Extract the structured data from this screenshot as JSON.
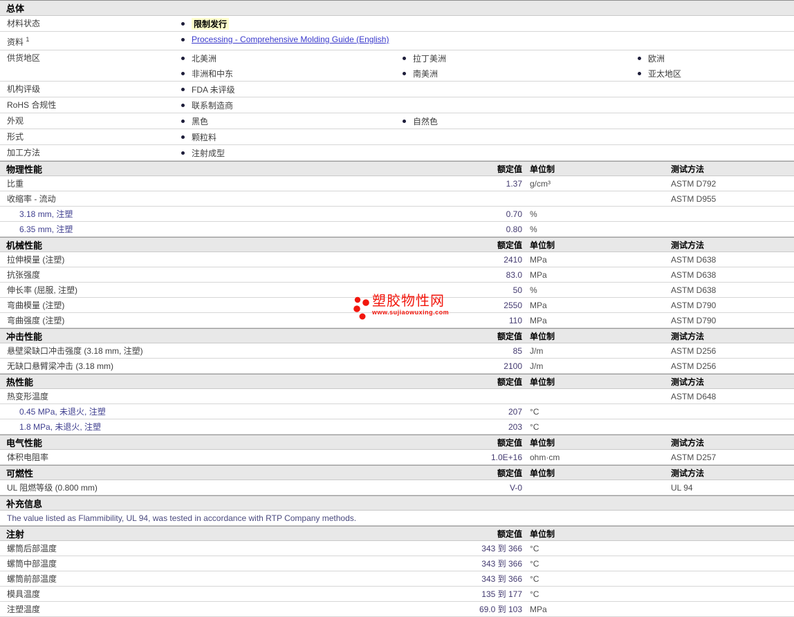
{
  "watermark": {
    "site_name": "塑胶物性网",
    "site_url": "www.sujiaowuxing.com"
  },
  "colors": {
    "accent_red": "#f2160c",
    "link_blue": "#3939cc",
    "highlight_yellow": "#ffffcc",
    "section_bg": "#e8e8e8"
  },
  "table": {
    "col_headers": {
      "value": "额定值",
      "unit": "单位制",
      "method": "测试方法"
    },
    "sections": [
      {
        "title": "总体",
        "kind": "general",
        "cols_header": "none",
        "rows": [
          {
            "label": "材料状态",
            "cols": [
              [
                {
                  "text": "限制发行",
                  "highlight": true
                }
              ],
              [],
              []
            ]
          },
          {
            "label": "资料",
            "sup": "1",
            "cols": [
              [
                {
                  "text": "Processing - Comprehensive Molding Guide (English)",
                  "link": true
                }
              ],
              [],
              []
            ]
          },
          {
            "label": "供货地区",
            "cols": [
              [
                "北美洲",
                "非洲和中东"
              ],
              [
                "拉丁美洲",
                "南美洲"
              ],
              [
                "欧洲",
                "亚太地区"
              ]
            ]
          },
          {
            "label": "机构评级",
            "cols": [
              [
                "FDA 未评级"
              ],
              [],
              []
            ]
          },
          {
            "label": "RoHS 合规性",
            "cols": [
              [
                "联系制造商"
              ],
              [],
              []
            ]
          },
          {
            "label": "外观",
            "cols": [
              [
                "黑色"
              ],
              [
                "自然色"
              ],
              []
            ]
          },
          {
            "label": "形式",
            "cols": [
              [
                "颗粒料"
              ],
              [],
              []
            ]
          },
          {
            "label": "加工方法",
            "cols": [
              [
                "注射成型"
              ],
              [],
              []
            ]
          }
        ]
      },
      {
        "title": "物理性能",
        "kind": "props",
        "cols_header": "full",
        "rows": [
          {
            "name": "比重",
            "value": "1.37",
            "unit": "g/cm³",
            "method": "ASTM D792"
          },
          {
            "name": "收缩率 - 流动",
            "method": "ASTM D955"
          },
          {
            "name": "3.18 mm, 注塑",
            "indent": true,
            "value": "0.70",
            "unit": "%"
          },
          {
            "name": "6.35 mm, 注塑",
            "indent": true,
            "value": "0.80",
            "unit": "%"
          }
        ]
      },
      {
        "title": "机械性能",
        "kind": "props",
        "cols_header": "full",
        "rows": [
          {
            "name": "拉伸模量 (注塑)",
            "value": "2410",
            "unit": "MPa",
            "method": "ASTM D638"
          },
          {
            "name": "抗张强度",
            "value": "83.0",
            "unit": "MPa",
            "method": "ASTM D638"
          },
          {
            "name": "伸长率 (屈服, 注塑)",
            "value": "50",
            "unit": "%",
            "method": "ASTM D638"
          },
          {
            "name": "弯曲模量 (注塑)",
            "value": "2550",
            "unit": "MPa",
            "method": "ASTM D790"
          },
          {
            "name": "弯曲强度 (注塑)",
            "value": "110",
            "unit": "MPa",
            "method": "ASTM D790"
          }
        ]
      },
      {
        "title": "冲击性能",
        "kind": "props",
        "cols_header": "full",
        "rows": [
          {
            "name": "悬壁梁缺口冲击强度 (3.18 mm, 注塑)",
            "value": "85",
            "unit": "J/m",
            "method": "ASTM D256"
          },
          {
            "name": "无缺口悬臂梁冲击 (3.18 mm)",
            "value": "2100",
            "unit": "J/m",
            "method": "ASTM D256"
          }
        ]
      },
      {
        "title": "热性能",
        "kind": "props",
        "cols_header": "full",
        "rows": [
          {
            "name": "热变形温度",
            "method": "ASTM D648"
          },
          {
            "name": "0.45 MPa, 未退火, 注塑",
            "indent": true,
            "value": "207",
            "unit": "°C"
          },
          {
            "name": "1.8 MPa, 未退火, 注塑",
            "indent": true,
            "value": "203",
            "unit": "°C"
          }
        ]
      },
      {
        "title": "电气性能",
        "kind": "props",
        "cols_header": "full",
        "rows": [
          {
            "name": "体积电阻率",
            "value": "1.0E+16",
            "unit": "ohm·cm",
            "method": "ASTM D257"
          }
        ]
      },
      {
        "title": "可燃性",
        "kind": "props",
        "cols_header": "full",
        "rows": [
          {
            "name": "UL 阻燃等级 (0.800 mm)",
            "value": "V-0",
            "method": "UL 94"
          }
        ]
      },
      {
        "title": "补充信息",
        "kind": "note",
        "cols_header": "none",
        "rows": [
          {
            "text": "The value listed as Flammibility, UL 94, was tested in accordance with RTP Company methods."
          }
        ]
      },
      {
        "title": "注射",
        "kind": "props",
        "cols_header": "value_unit",
        "rows": [
          {
            "name": "螺筒后部温度",
            "value": "343 到 366",
            "unit": "°C"
          },
          {
            "name": "螺筒中部温度",
            "value": "343 到 366",
            "unit": "°C"
          },
          {
            "name": "螺筒前部温度",
            "value": "343 到 366",
            "unit": "°C"
          },
          {
            "name": "模具温度",
            "value": "135 到 177",
            "unit": "°C"
          },
          {
            "name": "注塑温度",
            "value": "69.0 到 103",
            "unit": "MPa"
          }
        ]
      }
    ]
  }
}
